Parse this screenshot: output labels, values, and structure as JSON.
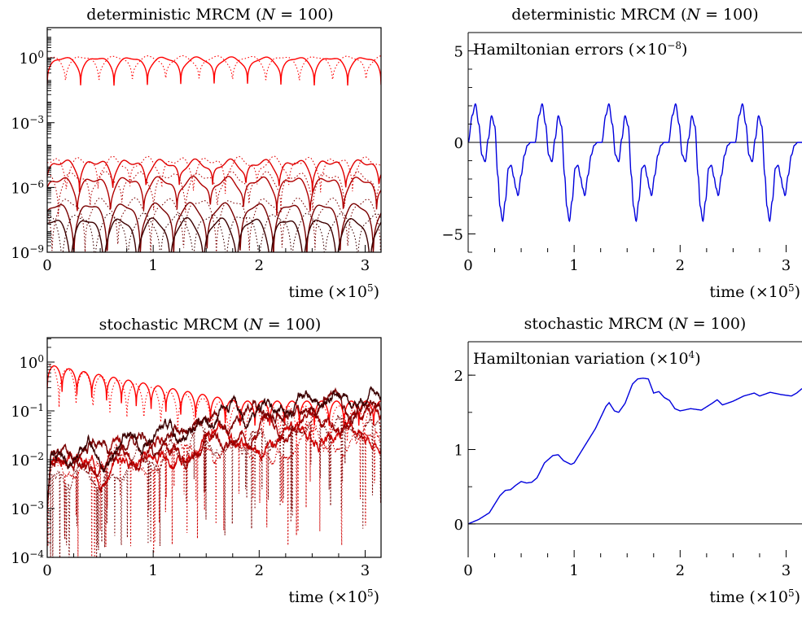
{
  "chart_data": [
    {
      "type": "line",
      "title_parts": [
        "deterministic MRCM (",
        "N",
        " = 100)"
      ],
      "xlabel": "time (×10",
      "xlabel_exp": "5",
      "xlabel_close": ")",
      "xlim": [
        0,
        3.15
      ],
      "xticks": [
        "0",
        "1",
        "2",
        "3"
      ],
      "yscale": "log",
      "ylim_log10": [
        -9,
        1.4
      ],
      "yticks": [
        {
          "base": "10",
          "exp": "0",
          "log": 0
        },
        {
          "base": "10",
          "exp": "−3",
          "log": -3
        },
        {
          "base": "10",
          "exp": "−6",
          "log": -6
        },
        {
          "base": "10",
          "exp": "−9",
          "log": -9
        }
      ],
      "style": "oscillating",
      "series": [
        {
          "color": "#ff0000",
          "dash": false,
          "level_log10": 0.0,
          "depth": 1.5,
          "period": 0.315,
          "phase": 0.0,
          "noise": 0.05
        },
        {
          "color": "#ff0000",
          "dash": true,
          "level_log10": 0.05,
          "depth": 1.6,
          "period": 0.315,
          "phase": 0.45,
          "noise": 0.05
        },
        {
          "color": "#e00000",
          "dash": false,
          "level_log10": -4.8,
          "depth": 1.6,
          "period": 0.314,
          "phase": 0.03,
          "noise": 0.12
        },
        {
          "color": "#e00000",
          "dash": true,
          "level_log10": -4.7,
          "depth": 1.9,
          "period": 0.3,
          "phase": 0.4,
          "noise": 0.15
        },
        {
          "color": "#b00000",
          "dash": false,
          "level_log10": -5.6,
          "depth": 2.0,
          "period": 0.314,
          "phase": 0.1,
          "noise": 0.12
        },
        {
          "color": "#b00000",
          "dash": true,
          "level_log10": -5.4,
          "depth": 2.2,
          "period": 0.3,
          "phase": 0.65,
          "noise": 0.15
        },
        {
          "color": "#7a0000",
          "dash": false,
          "level_log10": -6.8,
          "depth": 3.2,
          "period": 0.314,
          "phase": 0.2,
          "noise": 0.1
        },
        {
          "color": "#7a0000",
          "dash": true,
          "level_log10": -6.6,
          "depth": 3.3,
          "period": 0.31,
          "phase": 0.85,
          "noise": 0.12
        },
        {
          "color": "#3c0000",
          "dash": false,
          "level_log10": -7.5,
          "depth": 3.5,
          "period": 0.314,
          "phase": 0.3,
          "noise": 0.1
        },
        {
          "color": "#3c0000",
          "dash": true,
          "level_log10": -7.3,
          "depth": 3.5,
          "period": 0.31,
          "phase": 0.55,
          "noise": 0.12
        }
      ]
    },
    {
      "type": "line",
      "title_parts": [
        "deterministic MRCM (",
        "N",
        " = 100)"
      ],
      "xlabel": "time (×10",
      "xlabel_exp": "5",
      "xlabel_close": ")",
      "xlim": [
        0,
        3.15
      ],
      "xticks": [
        "0",
        "1",
        "2",
        "3"
      ],
      "yscale": "linear",
      "ylim": [
        -6,
        6
      ],
      "yticks": [
        {
          "label": "5",
          "value": 5
        },
        {
          "label": "0",
          "value": 0
        },
        {
          "label": "−5",
          "value": -5
        }
      ],
      "inset_label": "Hamiltonian errors (×10",
      "inset_exp": "−8",
      "inset_close": ")",
      "zero_line": true,
      "series": [
        {
          "color": "#0000dd",
          "period": 0.63,
          "keyframes": [
            [
              0,
              0
            ],
            [
              0.04,
              1.5
            ],
            [
              0.068,
              2.1
            ],
            [
              0.1,
              1.0
            ],
            [
              0.13,
              -0.7
            ],
            [
              0.16,
              -1.05
            ],
            [
              0.19,
              0.2
            ],
            [
              0.22,
              1.45
            ],
            [
              0.25,
              0.9
            ],
            [
              0.28,
              -1.8
            ],
            [
              0.3,
              -3.5
            ],
            [
              0.325,
              -4.3
            ],
            [
              0.35,
              -3.2
            ],
            [
              0.38,
              -1.4
            ],
            [
              0.405,
              -1.25
            ],
            [
              0.43,
              -1.9
            ],
            [
              0.45,
              -2.5
            ],
            [
              0.47,
              -2.9
            ],
            [
              0.5,
              -1.8
            ],
            [
              0.53,
              -0.7
            ],
            [
              0.56,
              -0.15
            ],
            [
              0.59,
              0.0
            ],
            [
              0.63,
              0
            ]
          ]
        }
      ]
    },
    {
      "type": "line",
      "title_parts": [
        "stochastic MRCM (",
        "N",
        " = 100)"
      ],
      "xlabel": "time (×10",
      "xlabel_exp": "5",
      "xlabel_close": ")",
      "xlim": [
        0,
        3.15
      ],
      "xticks": [
        "0",
        "1",
        "2",
        "3"
      ],
      "yscale": "log",
      "ylim_log10": [
        -4,
        0.5
      ],
      "yticks": [
        {
          "base": "10",
          "exp": "0",
          "log": 0
        },
        {
          "base": "10",
          "exp": "−1",
          "log": -1
        },
        {
          "base": "10",
          "exp": "−2",
          "log": -2
        },
        {
          "base": "10",
          "exp": "−3",
          "log": -3
        },
        {
          "base": "10",
          "exp": "−4",
          "log": -4
        }
      ],
      "style": "stochastic",
      "series": [
        {
          "color": "#ff0000",
          "dash": false,
          "kind": "decay",
          "start": -0.05,
          "end": -0.8,
          "depth": 0.55,
          "period": 0.14,
          "phase": 0.0
        },
        {
          "color": "#ff0000",
          "dash": true,
          "kind": "decay",
          "start": -0.05,
          "end": -0.9,
          "depth": 0.9,
          "period": 0.16,
          "phase": 0.3
        },
        {
          "color": "#d00000",
          "dash": false,
          "kind": "grow",
          "seed": 3,
          "start": -2.2,
          "end": -1.5
        },
        {
          "color": "#d00000",
          "dash": true,
          "kind": "grow",
          "seed": 5,
          "start": -2.3,
          "end": -1.6,
          "spiky": true
        },
        {
          "color": "#a00000",
          "dash": false,
          "kind": "grow",
          "seed": 7,
          "start": -2.1,
          "end": -1.2
        },
        {
          "color": "#7a0000",
          "dash": false,
          "kind": "grow",
          "seed": 11,
          "start": -2.0,
          "end": -0.9
        },
        {
          "color": "#3c0000",
          "dash": false,
          "kind": "grow",
          "seed": 13,
          "start": -2.0,
          "end": -0.85
        },
        {
          "color": "#7a0000",
          "dash": true,
          "kind": "grow",
          "seed": 17,
          "start": -2.4,
          "end": -1.3,
          "spiky": true
        }
      ]
    },
    {
      "type": "line",
      "title_parts": [
        "stochastic MRCM (",
        "N",
        " = 100)"
      ],
      "xlabel": "time (×10",
      "xlabel_exp": "5",
      "xlabel_close": ")",
      "xlim": [
        0,
        3.15
      ],
      "xticks": [
        "0",
        "1",
        "2",
        "3"
      ],
      "yscale": "linear",
      "ylim": [
        -0.45,
        2.45
      ],
      "yticks": [
        {
          "label": "2",
          "value": 2
        },
        {
          "label": "1",
          "value": 1
        },
        {
          "label": "0",
          "value": 0
        }
      ],
      "inset_label": "Hamiltonian variation (×10",
      "inset_exp": "4",
      "inset_close": ")",
      "zero_line": true,
      "series": [
        {
          "color": "#0000dd",
          "points": [
            [
              0,
              0
            ],
            [
              0.1,
              0.06
            ],
            [
              0.2,
              0.15
            ],
            [
              0.3,
              0.38
            ],
            [
              0.35,
              0.45
            ],
            [
              0.4,
              0.46
            ],
            [
              0.45,
              0.52
            ],
            [
              0.5,
              0.57
            ],
            [
              0.55,
              0.55
            ],
            [
              0.6,
              0.56
            ],
            [
              0.65,
              0.62
            ],
            [
              0.72,
              0.82
            ],
            [
              0.8,
              0.92
            ],
            [
              0.85,
              0.93
            ],
            [
              0.9,
              0.85
            ],
            [
              0.97,
              0.8
            ],
            [
              1.0,
              0.82
            ],
            [
              1.1,
              1.05
            ],
            [
              1.2,
              1.28
            ],
            [
              1.3,
              1.58
            ],
            [
              1.33,
              1.63
            ],
            [
              1.38,
              1.52
            ],
            [
              1.42,
              1.5
            ],
            [
              1.48,
              1.62
            ],
            [
              1.55,
              1.88
            ],
            [
              1.6,
              1.95
            ],
            [
              1.65,
              1.96
            ],
            [
              1.7,
              1.95
            ],
            [
              1.75,
              1.76
            ],
            [
              1.8,
              1.78
            ],
            [
              1.85,
              1.7
            ],
            [
              1.9,
              1.66
            ],
            [
              1.95,
              1.55
            ],
            [
              2.0,
              1.52
            ],
            [
              2.1,
              1.55
            ],
            [
              2.2,
              1.53
            ],
            [
              2.3,
              1.62
            ],
            [
              2.35,
              1.67
            ],
            [
              2.4,
              1.6
            ],
            [
              2.5,
              1.65
            ],
            [
              2.6,
              1.72
            ],
            [
              2.7,
              1.76
            ],
            [
              2.75,
              1.72
            ],
            [
              2.85,
              1.77
            ],
            [
              2.95,
              1.74
            ],
            [
              3.05,
              1.72
            ],
            [
              3.1,
              1.76
            ],
            [
              3.15,
              1.82
            ]
          ]
        }
      ]
    }
  ]
}
